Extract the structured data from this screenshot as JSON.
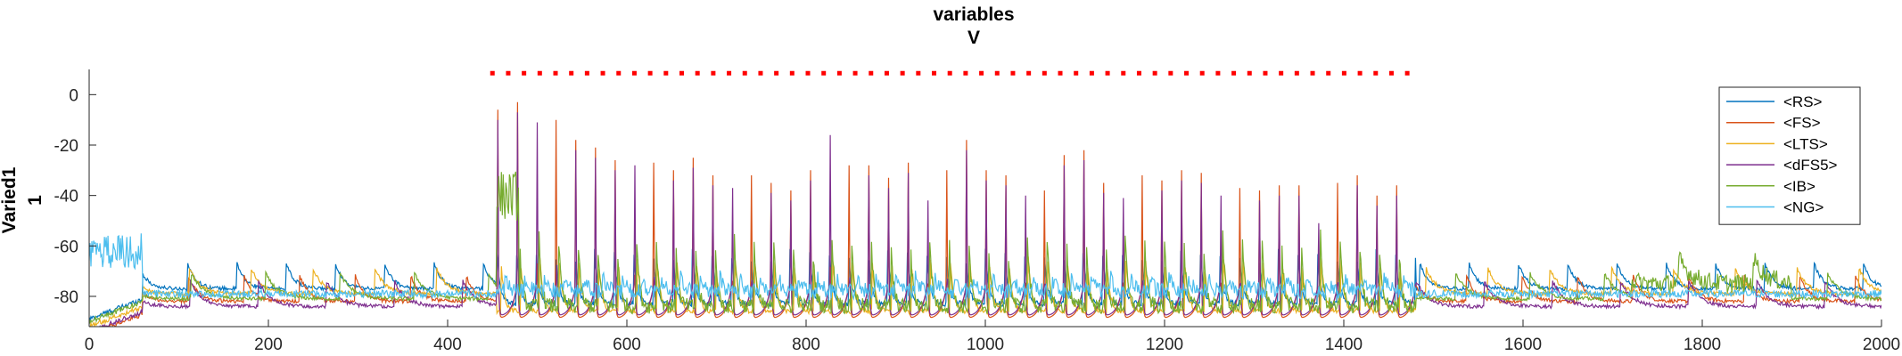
{
  "chart_data": {
    "type": "line",
    "title": "variables",
    "subtitle": "V",
    "ylabel_lines": [
      "Varied1",
      "1"
    ],
    "xlabel": "",
    "xlim": [
      0,
      2000
    ],
    "ylim": [
      -92,
      10
    ],
    "xticks": [
      0,
      200,
      400,
      600,
      800,
      1000,
      1200,
      1400,
      1600,
      1800,
      2000
    ],
    "xtick_labels": [
      "0",
      "200",
      "400",
      "600",
      "800",
      "1000",
      "1200",
      "1400",
      "1600",
      "1800",
      "2000"
    ],
    "yticks": [
      0,
      -20,
      -40,
      -60,
      -80
    ],
    "ytick_labels": [
      "0",
      "-20",
      "-40",
      "-60",
      "-80"
    ],
    "grid": false,
    "legend_position": "top-right",
    "stimulus_marker": {
      "color": "#ff0000",
      "y": 8.5,
      "x_start": 450,
      "x_end": 1480,
      "spacing": 17.6
    },
    "series": [
      {
        "name": "<RS>",
        "color": "#0072bd",
        "rest": -73,
        "burst_trough": -83,
        "burst_peak": -62
      },
      {
        "name": "<FS>",
        "color": "#d95319",
        "rest": -78,
        "burst_trough": -89,
        "burst_peak": -18
      },
      {
        "name": "<LTS>",
        "color": "#edb120",
        "rest": -75,
        "burst_trough": -86,
        "burst_peak": -65
      },
      {
        "name": "<dFS5>",
        "color": "#7e2f8e",
        "rest": -80,
        "burst_trough": -88,
        "burst_peak": -25
      },
      {
        "name": "<IB>",
        "color": "#77ac30",
        "rest": -77,
        "burst_trough": -84,
        "burst_peak": -55
      },
      {
        "name": "<NG>",
        "color": "#4dbeee",
        "rest": -79,
        "burst_trough": -74,
        "burst_peak": -66
      }
    ],
    "oscillation": {
      "burst_start": 455,
      "burst_end": 1480,
      "period": 21.8,
      "peak_heights": [
        -6,
        -3,
        -7,
        -10,
        -18,
        -21,
        -26,
        -24,
        -27,
        -30,
        -25,
        -32,
        -33,
        -32,
        -35,
        -38,
        -30,
        -12,
        -28,
        -28,
        -33,
        -27,
        -38,
        -30,
        -18,
        -30,
        -32,
        -36,
        -38,
        -24,
        -22,
        -35,
        -37,
        -32,
        -34,
        -30,
        -31,
        -36,
        -37,
        -38,
        -36,
        -36,
        -47,
        -35,
        -32,
        -40,
        -36,
        -36,
        -34,
        -42,
        -24,
        -18
      ]
    }
  }
}
